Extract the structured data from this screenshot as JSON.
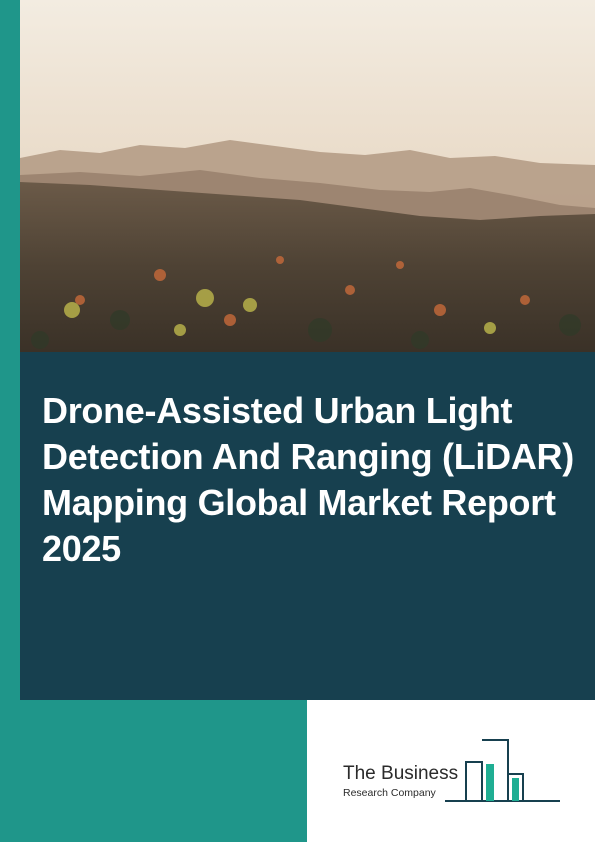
{
  "cover": {
    "title": "Drone-Assisted Urban Light Detection And Ranging (LiDAR) Mapping Global Market Report 2025",
    "photo_description_icon": "city-skyline-photo"
  },
  "publisher": {
    "name_line1": "The Business",
    "name_line2": "Research Company"
  },
  "colors": {
    "teal": "#1f968a",
    "navy": "#17404f",
    "white": "#ffffff"
  }
}
